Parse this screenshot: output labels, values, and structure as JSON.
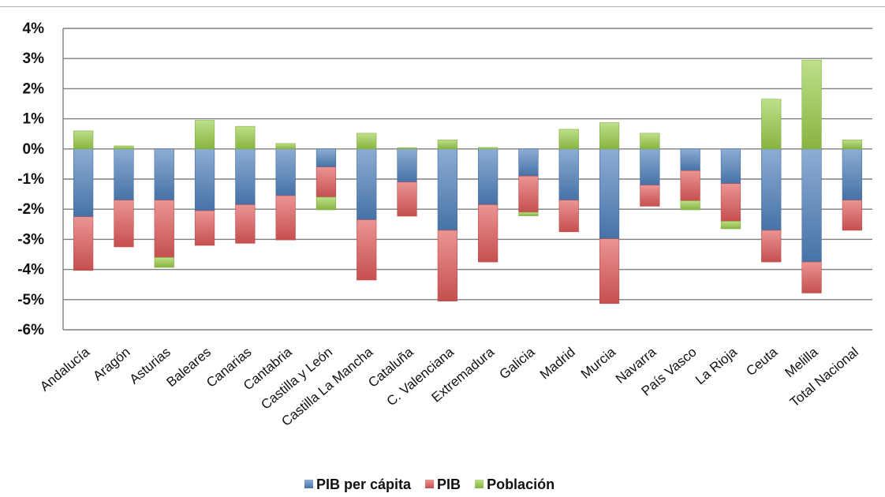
{
  "chart_data": {
    "type": "bar",
    "stacked": true,
    "categories": [
      "Andalucía",
      "Aragón",
      "Asturias",
      "Baleares",
      "Canarias",
      "Cantabria",
      "Castilla y León",
      "Castilla La Mancha",
      "Cataluña",
      "C. Valenciana",
      "Extremadura",
      "Galicia",
      "Madrid",
      "Murcia",
      "Navarra",
      "País Vasco",
      "La Rioja",
      "Ceuta",
      "Melilla",
      "Total Nacional"
    ],
    "series": [
      {
        "name": "PIB per cápita",
        "color": "#4f81bd",
        "values": [
          -2.25,
          -1.7,
          -1.7,
          -2.05,
          -1.85,
          -1.55,
          -0.6,
          -2.35,
          -1.1,
          -2.7,
          -1.85,
          -0.9,
          -1.7,
          -2.98,
          -1.2,
          -0.72,
          -1.15,
          -2.7,
          -3.75,
          -1.7
        ]
      },
      {
        "name": "PIB",
        "color": "#e05a5a",
        "values": [
          -1.78,
          -1.55,
          -1.9,
          -1.15,
          -1.28,
          -1.47,
          -1.0,
          -2.0,
          -1.13,
          -2.35,
          -1.9,
          -1.2,
          -1.05,
          -2.15,
          -0.7,
          -1.0,
          -1.25,
          -1.05,
          -1.03,
          -1.0
        ]
      },
      {
        "name": "Población",
        "color": "#9acd4a",
        "values": [
          0.6,
          0.1,
          -0.33,
          0.95,
          0.75,
          0.18,
          -0.42,
          0.52,
          0.04,
          0.3,
          0.05,
          -0.12,
          0.65,
          0.87,
          0.52,
          -0.3,
          -0.25,
          1.65,
          2.95,
          0.3
        ]
      }
    ],
    "ylim": [
      -6,
      4
    ],
    "yticks": [
      4,
      3,
      2,
      1,
      0,
      -1,
      -2,
      -3,
      -4,
      -5,
      -6
    ],
    "ytick_labels": [
      "4%",
      "3%",
      "2%",
      "1%",
      "0%",
      "-1%",
      "-2%",
      "-3%",
      "-4%",
      "-5%",
      "-6%"
    ],
    "grid": true,
    "legend_position": "bottom",
    "title": "",
    "xlabel": "",
    "ylabel": ""
  }
}
